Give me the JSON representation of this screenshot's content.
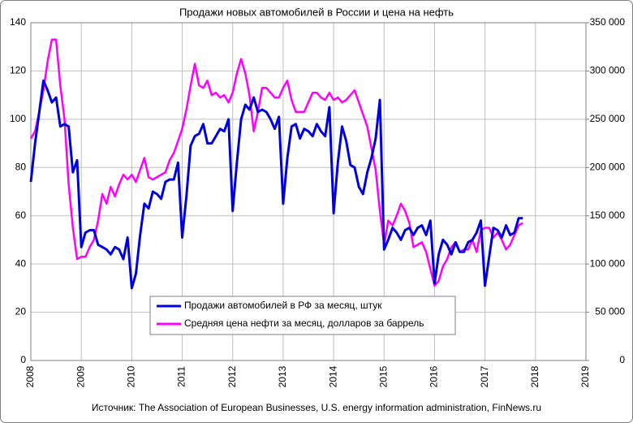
{
  "chart_data": {
    "type": "line",
    "title": "Продажи  новых  автомобилей  в России и цена на нефть",
    "source": "Источник: The Association of European Businesses, U.S. energy information administration, FinNews.ru",
    "x": [
      2008,
      2008.083,
      2008.167,
      2008.25,
      2008.333,
      2008.417,
      2008.5,
      2008.583,
      2008.667,
      2008.75,
      2008.833,
      2008.917,
      2009,
      2009.083,
      2009.167,
      2009.25,
      2009.333,
      2009.417,
      2009.5,
      2009.583,
      2009.667,
      2009.75,
      2009.833,
      2009.917,
      2010,
      2010.083,
      2010.167,
      2010.25,
      2010.333,
      2010.417,
      2010.5,
      2010.583,
      2010.667,
      2010.75,
      2010.833,
      2010.917,
      2011,
      2011.083,
      2011.167,
      2011.25,
      2011.333,
      2011.417,
      2011.5,
      2011.583,
      2011.667,
      2011.75,
      2011.833,
      2011.917,
      2012,
      2012.083,
      2012.167,
      2012.25,
      2012.333,
      2012.417,
      2012.5,
      2012.583,
      2012.667,
      2012.75,
      2012.833,
      2012.917,
      2013,
      2013.083,
      2013.167,
      2013.25,
      2013.333,
      2013.417,
      2013.5,
      2013.583,
      2013.667,
      2013.75,
      2013.833,
      2013.917,
      2014,
      2014.083,
      2014.167,
      2014.25,
      2014.333,
      2014.417,
      2014.5,
      2014.583,
      2014.667,
      2014.75,
      2014.833,
      2014.917,
      2015,
      2015.083,
      2015.167,
      2015.25,
      2015.333,
      2015.417,
      2015.5,
      2015.583,
      2015.667,
      2015.75,
      2015.833,
      2015.917,
      2016,
      2016.083,
      2016.167,
      2016.25,
      2016.333,
      2016.417,
      2016.5,
      2016.583,
      2016.667,
      2016.75,
      2016.833,
      2016.917,
      2017,
      2017.083,
      2017.167,
      2017.25,
      2017.333,
      2017.417,
      2017.5,
      2017.583,
      2017.667,
      2017.75
    ],
    "series": [
      {
        "name": "Продажи автомобилей в РФ за месяц, штук",
        "color": "#0000dd",
        "axis": "y2",
        "values": [
          185000,
          225000,
          257500,
          290000,
          280000,
          267500,
          272500,
          242500,
          245000,
          242500,
          195000,
          207500,
          117500,
          132500,
          135000,
          135000,
          120000,
          117500,
          115000,
          110000,
          117500,
          115000,
          105000,
          127500,
          75000,
          90000,
          130000,
          162500,
          157500,
          175000,
          172500,
          167500,
          185000,
          187500,
          187500,
          205000,
          127500,
          170000,
          222500,
          232500,
          235000,
          245000,
          225000,
          225000,
          232500,
          240000,
          237500,
          250000,
          155000,
          205000,
          250000,
          265000,
          260000,
          272500,
          257500,
          260000,
          257500,
          250000,
          240000,
          252500,
          162500,
          210000,
          242500,
          245000,
          230000,
          240000,
          237500,
          232500,
          245000,
          237500,
          232500,
          262500,
          152500,
          205000,
          242500,
          227500,
          202500,
          200000,
          180000,
          172500,
          195000,
          210000,
          230000,
          270000,
          115000,
          125000,
          137500,
          132500,
          125000,
          135000,
          137500,
          130000,
          137500,
          140000,
          130000,
          145000,
          80000,
          110000,
          125000,
          120000,
          110000,
          122500,
          112500,
          112500,
          122500,
          125000,
          132500,
          145000,
          77500,
          107500,
          137500,
          135000,
          127500,
          140000,
          130000,
          132500,
          147500,
          147500
        ]
      },
      {
        "name": "Средняя цена нефти  за месяц, долларов за баррель",
        "color": "#ff00ff",
        "values": [
          92,
          95,
          103,
          112,
          124,
          133,
          133,
          114,
          100,
          73,
          55,
          42,
          43,
          43,
          47,
          50,
          58,
          69,
          65,
          72,
          68,
          73,
          77,
          75,
          77,
          74,
          79,
          84,
          76,
          75,
          76,
          77,
          78,
          83,
          86,
          91,
          96,
          104,
          114,
          123,
          114,
          113,
          116,
          110,
          111,
          109,
          110,
          107,
          111,
          119,
          125,
          119,
          110,
          95,
          103,
          113,
          113,
          111,
          109,
          109,
          113,
          116,
          108,
          103,
          103,
          103,
          107,
          111,
          111,
          109,
          108,
          111,
          108,
          109,
          107,
          108,
          110,
          112,
          107,
          102,
          97,
          88,
          79,
          62,
          48,
          58,
          56,
          60,
          65,
          62,
          57,
          47,
          48,
          49,
          45,
          38,
          31,
          33,
          39,
          42,
          47,
          49,
          45,
          46,
          46,
          50,
          45,
          54,
          55,
          55,
          51,
          53,
          50,
          46,
          48,
          52,
          56,
          57
        ]
      }
    ],
    "xlim": [
      2008,
      2019
    ],
    "xticks": [
      2008,
      2009,
      2010,
      2011,
      2012,
      2013,
      2014,
      2015,
      2016,
      2017,
      2018,
      2019
    ],
    "ylim": [
      0,
      140
    ],
    "yticks": [
      0,
      20,
      40,
      60,
      80,
      100,
      120,
      140
    ],
    "y2lim": [
      0,
      350000
    ],
    "y2ticks": [
      0,
      {
        "value": 50000,
        "label": "50 000"
      },
      {
        "value": 100000,
        "label": "100 000"
      },
      {
        "value": 150000,
        "label": "150 000"
      },
      {
        "value": 200000,
        "label": "200 000"
      },
      {
        "value": 250000,
        "label": "250 000"
      },
      {
        "value": 300000,
        "label": "300 000"
      },
      {
        "value": 350000,
        "label": "350 000"
      }
    ],
    "grid": true,
    "legend": "lower center"
  }
}
